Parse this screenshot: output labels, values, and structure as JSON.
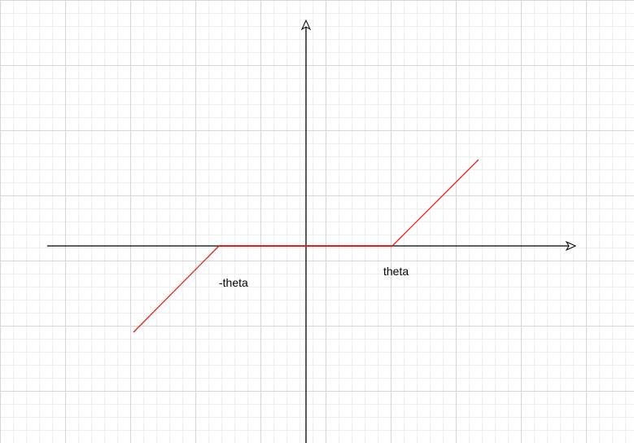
{
  "labels": {
    "negative_threshold": "-theta",
    "positive_threshold": "theta"
  },
  "colors": {
    "axis": "#000000",
    "function_line": "#e02020",
    "grid_major": "#d7d7d7",
    "grid_minor": "#efefef"
  },
  "function": {
    "description_type": "soft-threshold piecewise linear",
    "points": [
      [
        -2,
        -1
      ],
      [
        -1,
        0
      ],
      [
        1,
        0
      ],
      [
        2,
        1
      ]
    ]
  }
}
